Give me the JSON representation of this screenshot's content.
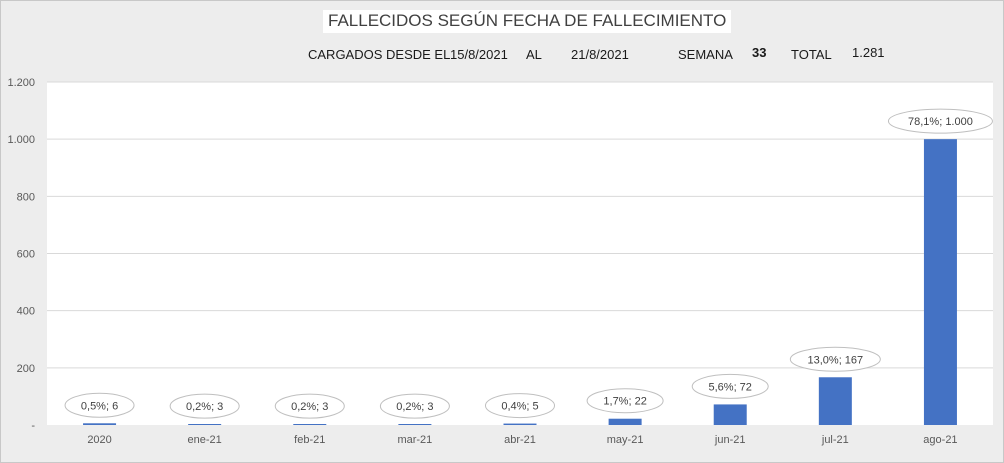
{
  "header": {
    "title": "FALLECIDOS SEGÚN FECHA DE FALLECIMIENTO",
    "loaded_label": "CARGADOS DESDE EL",
    "date_from": "15/8/2021",
    "al_label": "AL",
    "date_to": "21/8/2021",
    "week_label": "SEMANA",
    "week_value": "33",
    "total_label": "TOTAL",
    "total_value": "1.281"
  },
  "chart_data": {
    "type": "bar",
    "title": "FALLECIDOS SEGÚN FECHA DE FALLECIMIENTO",
    "xlabel": "",
    "ylabel": "",
    "categories": [
      "2020",
      "ene-21",
      "feb-21",
      "mar-21",
      "abr-21",
      "may-21",
      "jun-21",
      "jul-21",
      "ago-21"
    ],
    "values": [
      6,
      3,
      3,
      3,
      5,
      22,
      72,
      167,
      1000
    ],
    "data_labels": [
      "0,5%; 6",
      "0,2%; 3",
      "0,2%; 3",
      "0,2%; 3",
      "0,4%; 5",
      "1,7%; 22",
      "5,6%; 72",
      "13,0%; 167",
      "78,1%; 1.000"
    ],
    "y_ticks": [
      0,
      200,
      400,
      600,
      800,
      1000,
      1200
    ],
    "y_tick_labels": [
      "-",
      "200",
      "400",
      "600",
      "800",
      "1.000",
      "1.200"
    ],
    "ylim": [
      0,
      1200
    ],
    "grid": true,
    "bar_color": "#4472c4"
  }
}
